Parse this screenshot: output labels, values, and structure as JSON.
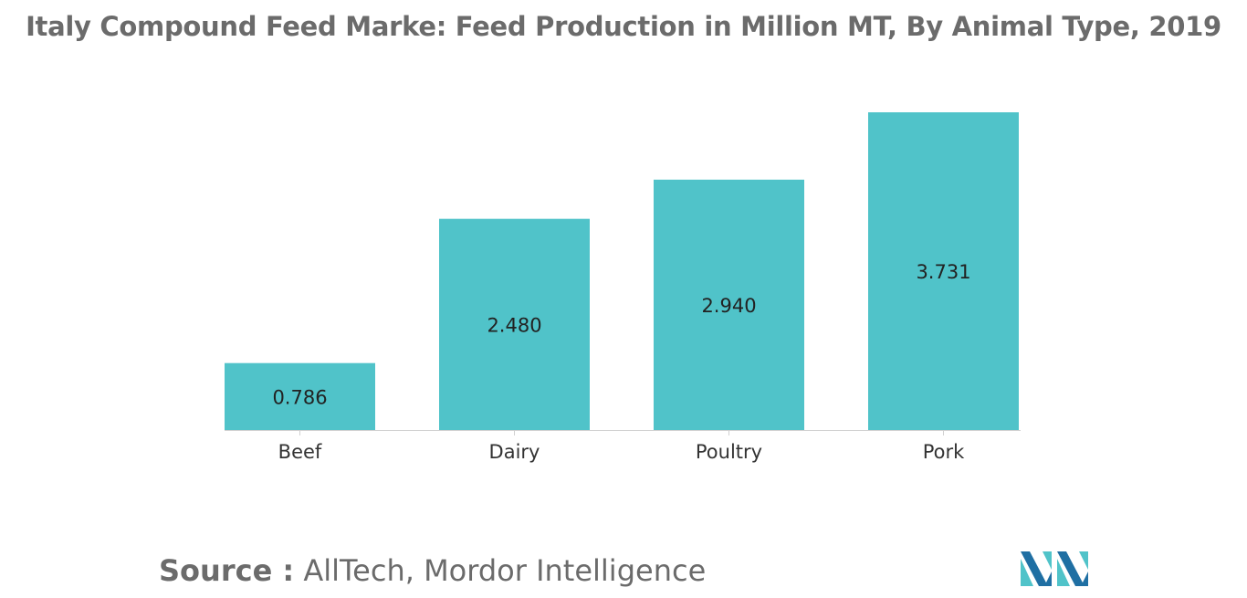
{
  "chart_data": {
    "type": "bar",
    "title": "Italy Compound Feed Marke: Feed Production in Million MT, By Animal Type, 2019",
    "categories": [
      "Beef",
      "Dairy",
      "Poultry",
      "Pork"
    ],
    "values": [
      0.786,
      2.48,
      2.94,
      3.731
    ],
    "value_labels": [
      "0.786",
      "2.480",
      "2.940",
      "3.731"
    ],
    "xlabel": "",
    "ylabel": "",
    "ylim": [
      0,
      3.731
    ],
    "grid": false,
    "legend": "none",
    "bar_color": "#50c3c9",
    "label_color": "#222222",
    "axis_color": "#d0d0d0"
  },
  "source": {
    "label": "Source :",
    "text": "AllTech, Mordor Intelligence"
  },
  "logo": {
    "icon": "mordor-intelligence-logo-icon",
    "colors": [
      "#1f6fa3",
      "#50c3c9"
    ]
  }
}
